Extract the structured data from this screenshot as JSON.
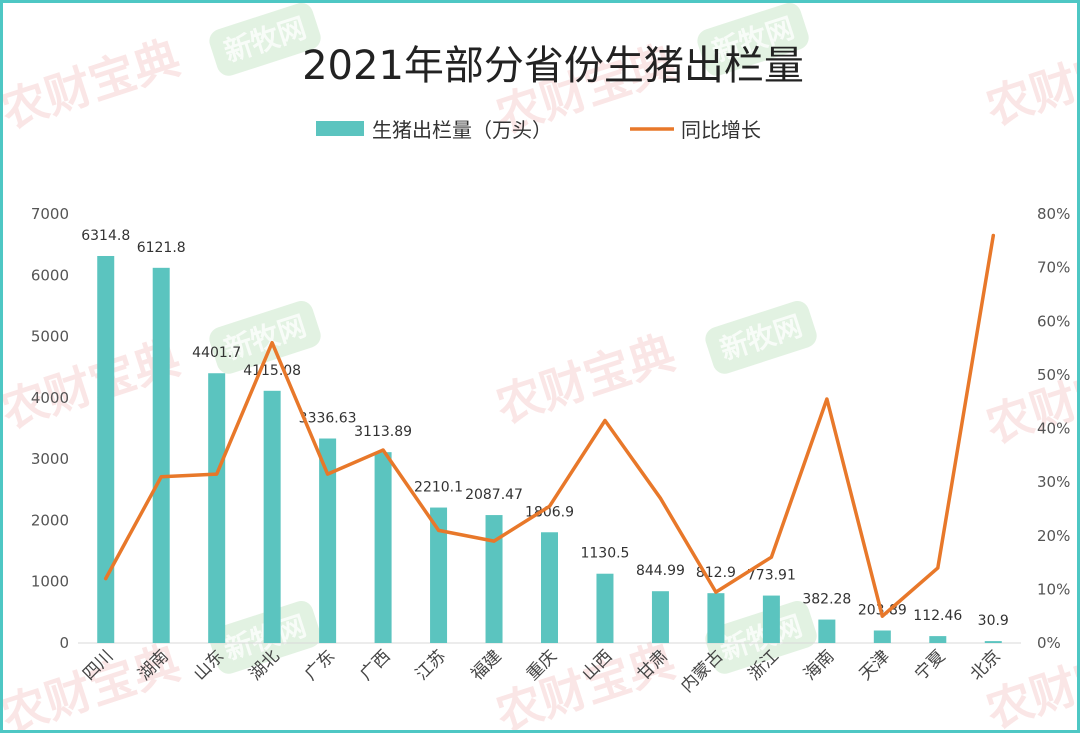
{
  "watermarks": {
    "text_a": "农财宝典",
    "text_b": "新牧网"
  },
  "chart_data": {
    "type": "bar",
    "title": "2021年部分省份生猪出栏量",
    "categories": [
      "四川",
      "湖南",
      "山东",
      "湖北",
      "广东",
      "广西",
      "江苏",
      "福建",
      "重庆",
      "山西",
      "甘肃",
      "内蒙古",
      "浙江",
      "海南",
      "天津",
      "宁夏",
      "北京"
    ],
    "series": [
      {
        "name": "生猪出栏量（万头）",
        "type": "bar",
        "axis": "left",
        "color": "#5bc4bf",
        "values": [
          6314.8,
          6121.8,
          4401.7,
          4115.08,
          3336.63,
          3113.89,
          2210.1,
          2087.47,
          1806.9,
          1130.5,
          844.99,
          812.9,
          773.91,
          382.28,
          203.89,
          112.46,
          30.9
        ],
        "labels": [
          "6314.8",
          "6121.8",
          "4401.7",
          "4115.08",
          "3336.63",
          "3113.89",
          "2210.1",
          "2087.47",
          "1806.9",
          "1130.5",
          "844.99",
          "812.9",
          "773.91",
          "382.28",
          "203.89",
          "112.46",
          "30.9"
        ]
      },
      {
        "name": "同比增长",
        "type": "line",
        "axis": "right",
        "color": "#e8782a",
        "values": [
          0.12,
          0.31,
          0.315,
          0.56,
          0.315,
          0.36,
          0.21,
          0.19,
          0.255,
          0.415,
          0.27,
          0.095,
          0.16,
          0.455,
          0.05,
          0.14,
          0.76
        ]
      }
    ],
    "y_left": {
      "min": 0,
      "max": 7000,
      "ticks": [
        "0",
        "1000",
        "2000",
        "3000",
        "4000",
        "5000",
        "6000",
        "7000"
      ]
    },
    "y_right": {
      "min": 0,
      "max": 0.8,
      "ticks": [
        "0%",
        "10%",
        "20%",
        "30%",
        "40%",
        "50%",
        "60%",
        "70%",
        "80%"
      ]
    },
    "grid": false,
    "legend_position": "top-center"
  }
}
